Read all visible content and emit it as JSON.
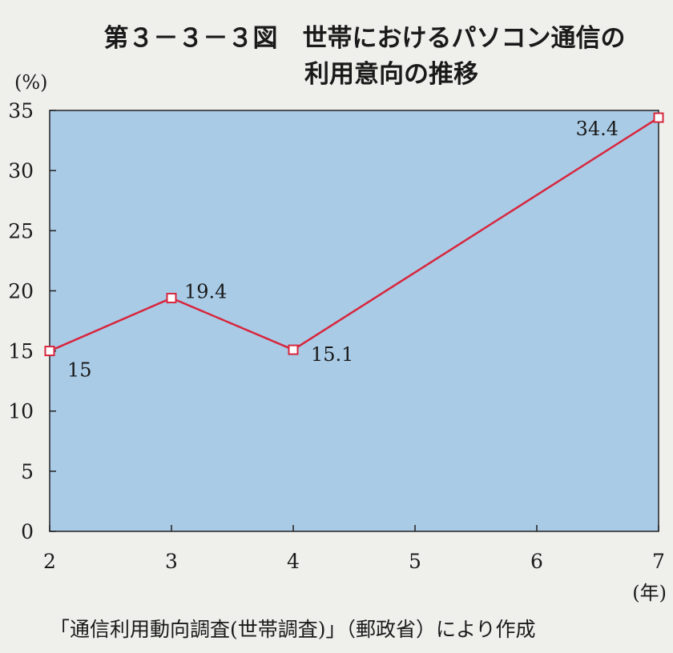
{
  "title_line1": "第３－３－３図　世帯におけるパソコン通信の",
  "title_line2": "利用意向の推移",
  "source_note": "「通信利用動向調査(世帯調査)」（郵政省）により作成",
  "colors": {
    "plot_bg": "#a9cbe6",
    "line": "#d7263d",
    "marker_fill": "#ffffff",
    "text": "#1a1a1a",
    "page_bg": "#efefec"
  },
  "chart_data": {
    "type": "line",
    "title": "世帯におけるパソコン通信の利用意向の推移",
    "y_unit_label": "(%)",
    "x_unit_label": "(年)",
    "xlim": [
      2,
      7
    ],
    "ylim": [
      0,
      35
    ],
    "x_ticks": [
      "2",
      "3",
      "4",
      "5",
      "6",
      "7"
    ],
    "y_ticks": [
      "0",
      "5",
      "10",
      "15",
      "20",
      "25",
      "30",
      "35"
    ],
    "grid": false,
    "series": [
      {
        "x": [
          2,
          3,
          4,
          7
        ],
        "values": [
          15,
          19.4,
          15.1,
          34.4
        ],
        "data_labels": [
          "15",
          "19.4",
          "15.1",
          "34.4"
        ]
      }
    ]
  }
}
